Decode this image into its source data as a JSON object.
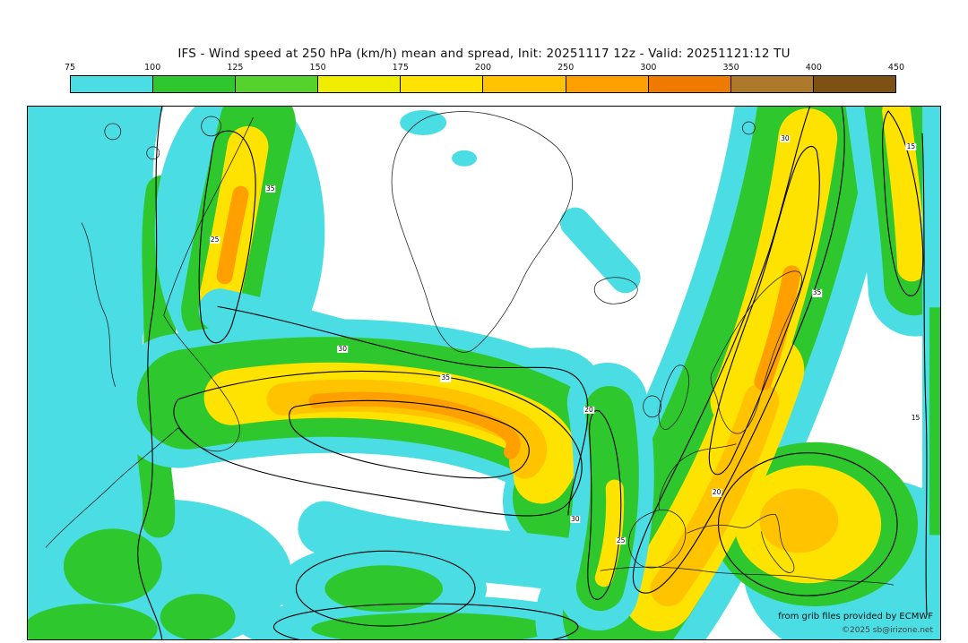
{
  "chart": {
    "title": "IFS - Wind speed at 250 hPa (km/h) mean and spread, Init: 20251117 12z - Valid: 20251121:12 TU",
    "attribution": "from grib files provided by ECMWF",
    "copyright": "©2025 sb@irizone.net"
  },
  "chart_data": {
    "type": "heatmap",
    "title": "IFS - Wind speed at 250 hPa (km/h) mean and spread",
    "model": "IFS",
    "field": "Wind speed at 250 hPa",
    "units": "km/h",
    "init": "20251117 12z",
    "valid": "20251121:12 TU",
    "legend": {
      "levels": [
        75,
        100,
        125,
        150,
        175,
        200,
        250,
        300,
        350,
        400,
        450
      ],
      "colors": [
        "#4BDDE4",
        "#2EC82E",
        "#55D22B",
        "#EFEC00",
        "#FFE300",
        "#FFC300",
        "#FFA000",
        "#EF7A00",
        "#AD7A2B",
        "#7C5113"
      ],
      "position": "top"
    },
    "spread_labels": [
      {
        "v": "35",
        "x": 26.6,
        "y": 15.5
      },
      {
        "v": "25",
        "x": 20.5,
        "y": 25.0
      },
      {
        "v": "35",
        "x": 45.8,
        "y": 51.0
      },
      {
        "v": "30",
        "x": 34.5,
        "y": 45.5
      },
      {
        "v": "20",
        "x": 61.5,
        "y": 57.0
      },
      {
        "v": "30",
        "x": 60.0,
        "y": 77.5
      },
      {
        "v": "25",
        "x": 65.0,
        "y": 81.5
      },
      {
        "v": "20",
        "x": 75.5,
        "y": 72.5
      },
      {
        "v": "35",
        "x": 86.5,
        "y": 35.0
      },
      {
        "v": "30",
        "x": 83.0,
        "y": 6.0
      },
      {
        "v": "15",
        "x": 96.8,
        "y": 7.5
      },
      {
        "v": "15",
        "x": 97.3,
        "y": 58.5
      }
    ]
  }
}
